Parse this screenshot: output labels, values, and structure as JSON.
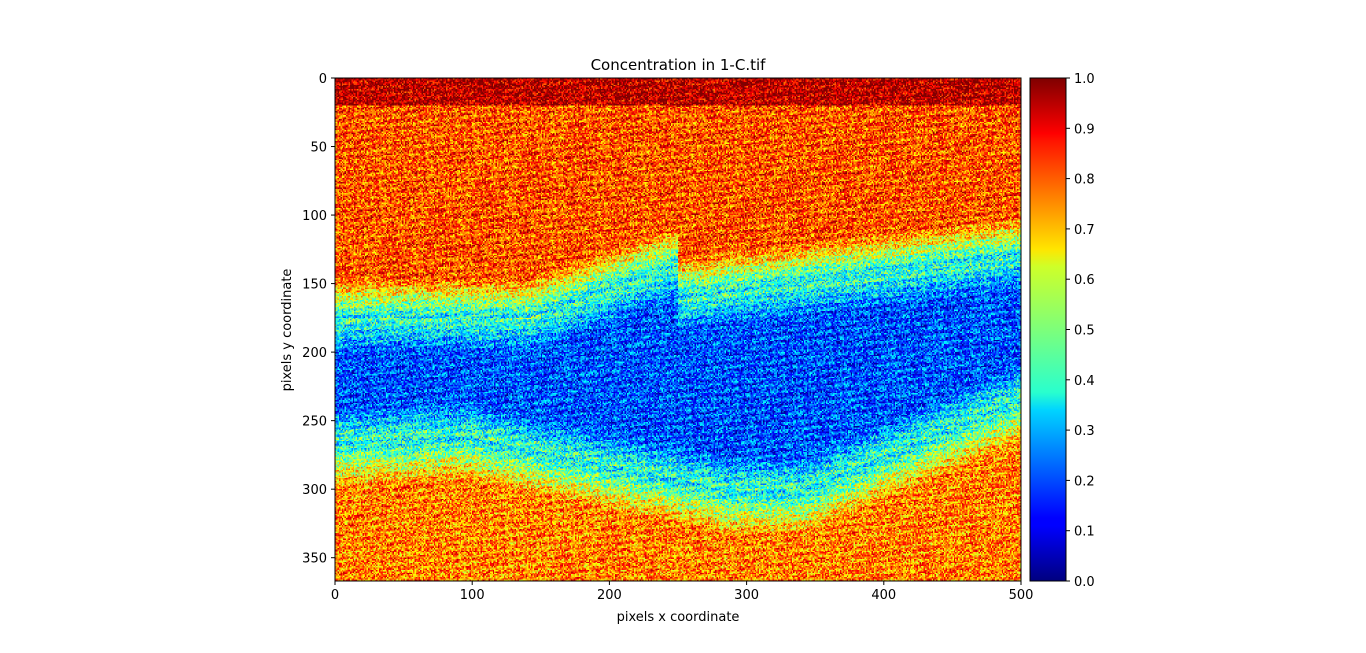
{
  "chart_data": {
    "type": "heatmap",
    "title": "Concentration in 1-C.tif",
    "xlabel": "pixels x coordinate",
    "ylabel": "pixels y coordinate",
    "xlim": [
      0,
      500
    ],
    "ylim": [
      0,
      367
    ],
    "y_axis_inverted": true,
    "xticks": [
      0,
      100,
      200,
      300,
      400,
      500
    ],
    "yticks": [
      0,
      50,
      100,
      150,
      200,
      250,
      300,
      350
    ],
    "colormap": "jet",
    "colorbar": {
      "range": [
        0.0,
        1.0
      ],
      "ticks": [
        "0.0",
        "0.1",
        "0.2",
        "0.3",
        "0.4",
        "0.5",
        "0.6",
        "0.7",
        "0.8",
        "0.9",
        "1.0"
      ]
    },
    "regions": [
      {
        "name": "top band",
        "y_range": [
          0,
          20
        ],
        "value": 0.95
      },
      {
        "name": "upper field",
        "y_range": [
          20,
          140
        ],
        "value": 0.8
      },
      {
        "name": "central blue zone",
        "y_range": [
          160,
          300
        ],
        "value": 0.2
      },
      {
        "name": "lower field",
        "y_range": [
          300,
          367
        ],
        "value": 0.75
      }
    ]
  }
}
